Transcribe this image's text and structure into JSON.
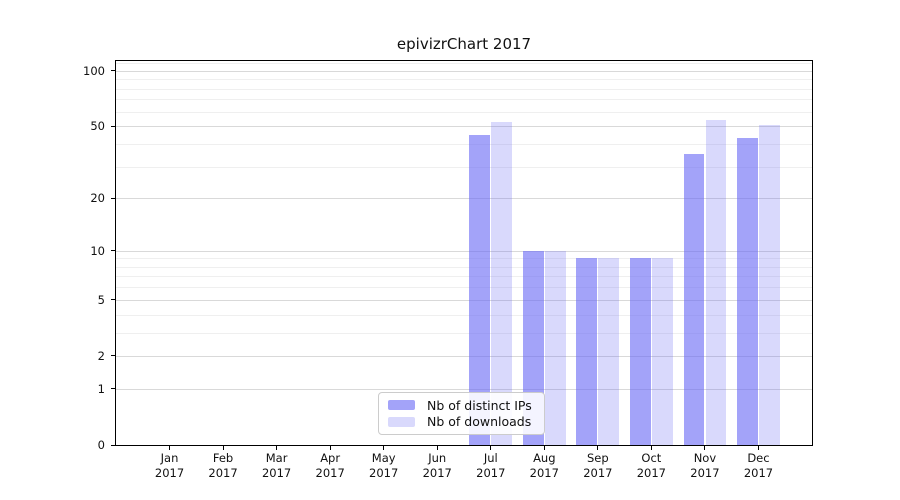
{
  "chart_data": {
    "type": "bar",
    "title": "epivizrChart 2017",
    "categories": [
      "Jan",
      "Feb",
      "Mar",
      "Apr",
      "May",
      "Jun",
      "Jul",
      "Aug",
      "Sep",
      "Oct",
      "Nov",
      "Dec"
    ],
    "x_year": "2017",
    "series": [
      {
        "name": "Nb of distinct IPs",
        "color": "rgba(102,102,245,0.60)",
        "color_hex_on_white": "#a4a4f7",
        "values": [
          0,
          0,
          0,
          0,
          0,
          0,
          45,
          10,
          9,
          9,
          35,
          43
        ]
      },
      {
        "name": "Nb of downloads",
        "color": "rgba(102,102,245,0.25)",
        "color_hex_on_white": "#dadaf8",
        "values": [
          0,
          0,
          0,
          0,
          0,
          0,
          53,
          10,
          9,
          9,
          54,
          51
        ]
      }
    ],
    "xlabel": "",
    "ylabel": "",
    "y_scale": "log1p",
    "y_major_ticks": [
      0,
      1,
      2,
      5,
      10,
      20,
      50,
      100
    ],
    "y_minor_gridlines": [
      3,
      4,
      6,
      7,
      8,
      9,
      30,
      40,
      60,
      70,
      80,
      90,
      110
    ],
    "ylim": [
      0,
      113
    ],
    "grid": true,
    "legend_position": "lower center"
  }
}
